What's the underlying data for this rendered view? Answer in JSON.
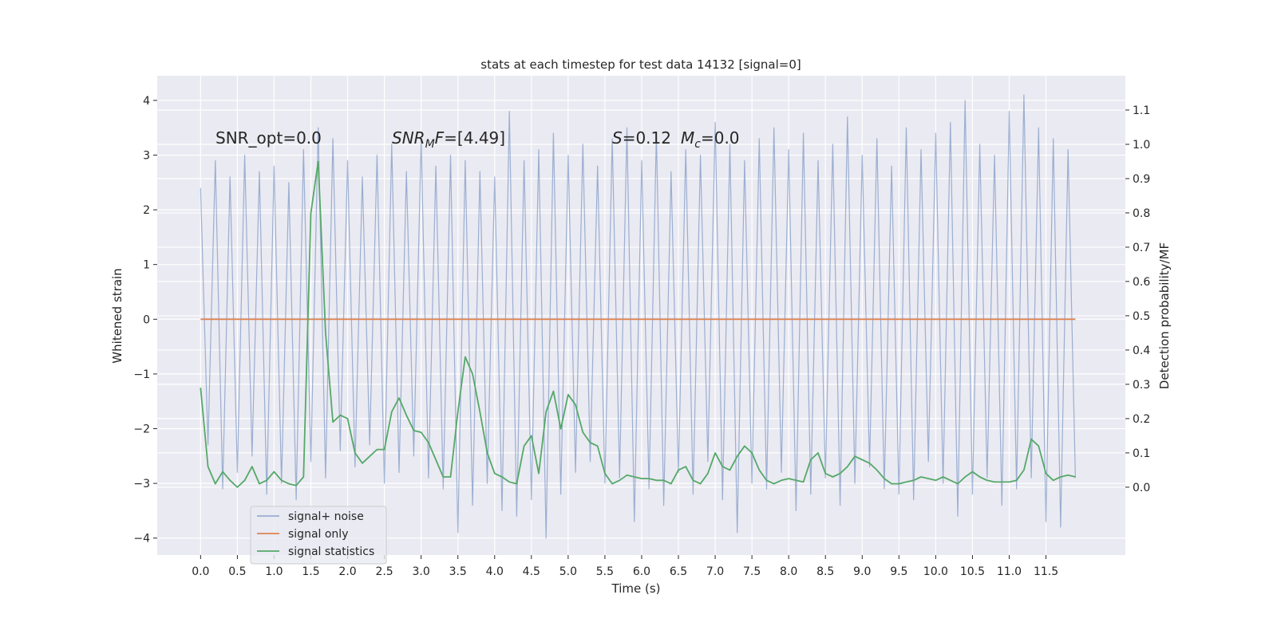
{
  "chart_data": {
    "type": "line",
    "title": "stats at each timestep for test data 14132 [signal=0]",
    "xlabel": "Time (s)",
    "ylabel": "Whitened strain",
    "y2label": "Detection probability/MF",
    "annotations": [
      [
        "SNR_opt=0.0"
      ],
      [
        "SNR",
        "M",
        "F",
        "=[4.49]"
      ],
      [
        "S",
        "=0.12",
        "M",
        "c",
        "=0.0"
      ]
    ],
    "xlim": [
      -0.59,
      12.58
    ],
    "ylim": [
      -4.31,
      4.45
    ],
    "y2lim": [
      -0.198,
      1.2
    ],
    "xticks": [
      {
        "value": 0,
        "label": "0.0"
      },
      0.5,
      {
        "value": 1,
        "label": "1.0"
      },
      1.5,
      {
        "value": 2,
        "label": "2.0"
      },
      2.5,
      {
        "value": 3,
        "label": "3.0"
      },
      3.5,
      {
        "value": 4,
        "label": "4.0"
      },
      4.5,
      {
        "value": 5,
        "label": "5.0"
      },
      5.5,
      {
        "value": 6,
        "label": "6.0"
      },
      6.5,
      {
        "value": 7,
        "label": "7.0"
      },
      7.5,
      {
        "value": 8,
        "label": "8.0"
      },
      8.5,
      {
        "value": 9,
        "label": "9.0"
      },
      9.5,
      {
        "value": 10,
        "label": "10.0"
      },
      10.5,
      {
        "value": 11,
        "label": "11.0"
      },
      11.5
    ],
    "yticks": [
      {
        "value": -4,
        "label": "−4"
      },
      {
        "value": -3,
        "label": "−3"
      },
      {
        "value": -2,
        "label": "−2"
      },
      {
        "value": -1,
        "label": "−1"
      },
      0,
      1,
      2,
      3,
      4
    ],
    "y2ticks": [
      {
        "value": 0,
        "label": "0.0"
      },
      0.1,
      0.2,
      0.3,
      0.4,
      0.5,
      0.6,
      0.7,
      0.8,
      0.9,
      {
        "value": 1,
        "label": "1.0"
      },
      1.1
    ],
    "grid": true,
    "legend": "lower left",
    "x": [
      0,
      0.1,
      0.2,
      0.3,
      0.4,
      0.5,
      0.6,
      0.7,
      0.8,
      0.9,
      1,
      1.1,
      1.2,
      1.3,
      1.4,
      1.5,
      1.6,
      1.7,
      1.8,
      1.9,
      2,
      2.1,
      2.2,
      2.3,
      2.4,
      2.5,
      2.6,
      2.7,
      2.8,
      2.9,
      3,
      3.1,
      3.2,
      3.3,
      3.4,
      3.5,
      3.6,
      3.7,
      3.8,
      3.9,
      4,
      4.1,
      4.2,
      4.3,
      4.4,
      4.5,
      4.6,
      4.7,
      4.8,
      4.9,
      5,
      5.1,
      5.2,
      5.3,
      5.4,
      5.5,
      5.6,
      5.7,
      5.8,
      5.9,
      6,
      6.1,
      6.2,
      6.3,
      6.4,
      6.5,
      6.6,
      6.7,
      6.8,
      6.9,
      7,
      7.1,
      7.2,
      7.3,
      7.4,
      7.5,
      7.6,
      7.7,
      7.8,
      7.9,
      8,
      8.1,
      8.2,
      8.3,
      8.4,
      8.5,
      8.6,
      8.7,
      8.8,
      8.9,
      9,
      9.1,
      9.2,
      9.3,
      9.4,
      9.5,
      9.6,
      9.7,
      9.8,
      9.9,
      10,
      10.1,
      10.2,
      10.3,
      10.4,
      10.5,
      10.6,
      10.7,
      10.8,
      10.9,
      11,
      11.1,
      11.2,
      11.3,
      11.4,
      11.5,
      11.6,
      11.7,
      11.8,
      11.9
    ],
    "series": [
      {
        "name": "signal+ noise",
        "color": "#4c72b0",
        "alpha": 0.5,
        "values": [
          2.4,
          -2.3,
          2.9,
          -3.1,
          2.6,
          -2.8,
          3.0,
          -2.5,
          2.7,
          -3.2,
          2.8,
          -3.0,
          2.5,
          -3.3,
          3.1,
          -2.6,
          3.5,
          -2.9,
          3.3,
          -2.4,
          2.9,
          -2.7,
          2.6,
          -2.3,
          3.0,
          -3.0,
          3.2,
          -2.8,
          2.7,
          -2.5,
          3.3,
          -2.9,
          2.8,
          -3.1,
          3.0,
          -3.9,
          2.9,
          -3.4,
          2.7,
          -3.0,
          2.6,
          -3.5,
          3.8,
          -3.6,
          2.9,
          -3.3,
          3.1,
          -4.0,
          3.4,
          -3.2,
          3.0,
          -2.8,
          3.2,
          -2.6,
          2.8,
          -3.0,
          3.3,
          -2.9,
          3.5,
          -3.7,
          2.9,
          -3.1,
          3.4,
          -3.4,
          2.7,
          -2.8,
          3.1,
          -3.2,
          3.0,
          -2.6,
          3.6,
          -3.3,
          3.2,
          -3.9,
          2.9,
          -3.0,
          3.3,
          -3.1,
          3.5,
          -2.8,
          3.1,
          -3.5,
          3.4,
          -3.2,
          2.9,
          -2.9,
          3.2,
          -3.4,
          3.7,
          -3.0,
          3.0,
          -2.7,
          3.3,
          -3.1,
          2.8,
          -3.2,
          3.5,
          -3.3,
          3.1,
          -2.6,
          3.4,
          -3.0,
          3.6,
          -3.6,
          4.0,
          -3.2,
          3.2,
          -2.9,
          3.0,
          -3.4,
          3.8,
          -3.1,
          4.1,
          -2.9,
          3.5,
          -3.7,
          3.3,
          -3.8,
          3.1,
          -2.9
        ]
      },
      {
        "name": "signal only",
        "color": "#dd8452",
        "x": [
          0,
          11.9
        ],
        "values": [
          0,
          0
        ]
      },
      {
        "name": "signal statistics",
        "color": "#55a868",
        "axis": "y2",
        "values": [
          0.29,
          0.06,
          0.01,
          0.045,
          0.02,
          0,
          0.02,
          0.06,
          0.01,
          0.02,
          0.045,
          0.02,
          0.01,
          0.005,
          0.03,
          0.8,
          0.95,
          0.45,
          0.19,
          0.21,
          0.2,
          0.1,
          0.07,
          0.09,
          0.11,
          0.11,
          0.22,
          0.26,
          0.21,
          0.165,
          0.16,
          0.13,
          0.08,
          0.03,
          0.03,
          0.22,
          0.38,
          0.33,
          0.22,
          0.1,
          0.04,
          0.03,
          0.015,
          0.01,
          0.12,
          0.15,
          0.04,
          0.22,
          0.28,
          0.17,
          0.27,
          0.24,
          0.16,
          0.13,
          0.12,
          0.04,
          0.01,
          0.02,
          0.035,
          0.03,
          0.025,
          0.025,
          0.02,
          0.02,
          0.01,
          0.05,
          0.06,
          0.02,
          0.01,
          0.04,
          0.1,
          0.06,
          0.05,
          0.09,
          0.12,
          0.1,
          0.05,
          0.02,
          0.01,
          0.02,
          0.025,
          0.02,
          0.015,
          0.08,
          0.1,
          0.04,
          0.03,
          0.04,
          0.06,
          0.09,
          0.08,
          0.07,
          0.05,
          0.025,
          0.01,
          0.01,
          0.015,
          0.02,
          0.03,
          0.025,
          0.02,
          0.03,
          0.02,
          0.01,
          0.03,
          0.045,
          0.03,
          0.02,
          0.015,
          0.015,
          0.015,
          0.02,
          0.05,
          0.14,
          0.12,
          0.04,
          0.02,
          0.03,
          0.035,
          0.03
        ]
      }
    ]
  }
}
